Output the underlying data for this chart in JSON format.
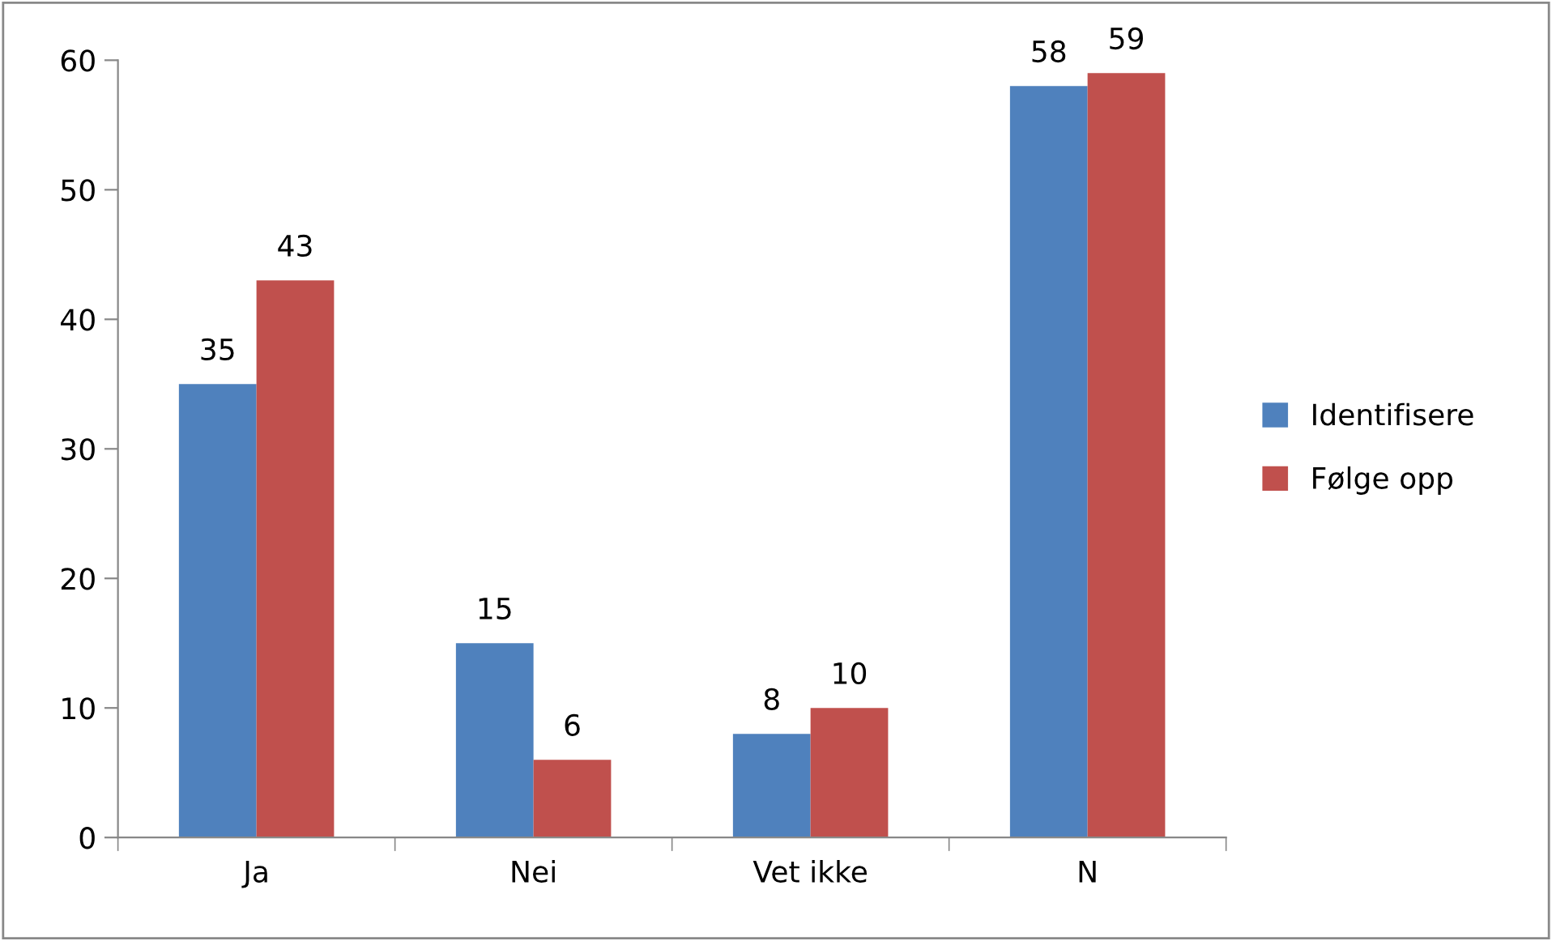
{
  "chart_data": {
    "type": "bar",
    "categories": [
      "Ja",
      "Nei",
      "Vet ikke",
      "N"
    ],
    "series": [
      {
        "name": "Identifisere",
        "color": "#4f81bd",
        "values": [
          35,
          15,
          8,
          58
        ]
      },
      {
        "name": "Følge opp",
        "color": "#c0504d",
        "values": [
          43,
          6,
          10,
          59
        ]
      }
    ],
    "ylim": [
      0,
      60
    ],
    "yticks": [
      0,
      10,
      20,
      30,
      40,
      50,
      60
    ],
    "grid": false,
    "legend": "right",
    "data_labels": true
  }
}
